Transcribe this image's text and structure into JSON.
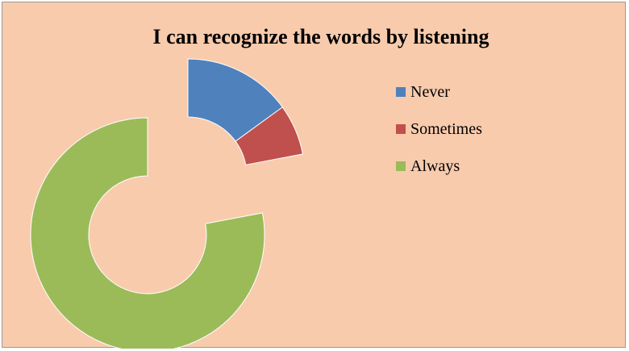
{
  "chart_data": {
    "type": "pie",
    "variant": "exploded-doughnut",
    "title": "I can recognize the words by listening",
    "categories": [
      "Never",
      "Sometimes",
      "Always"
    ],
    "values": [
      15,
      7,
      78
    ],
    "colors": [
      "#4F81BD",
      "#C0504D",
      "#9BBB59"
    ],
    "legend_position": "right"
  }
}
